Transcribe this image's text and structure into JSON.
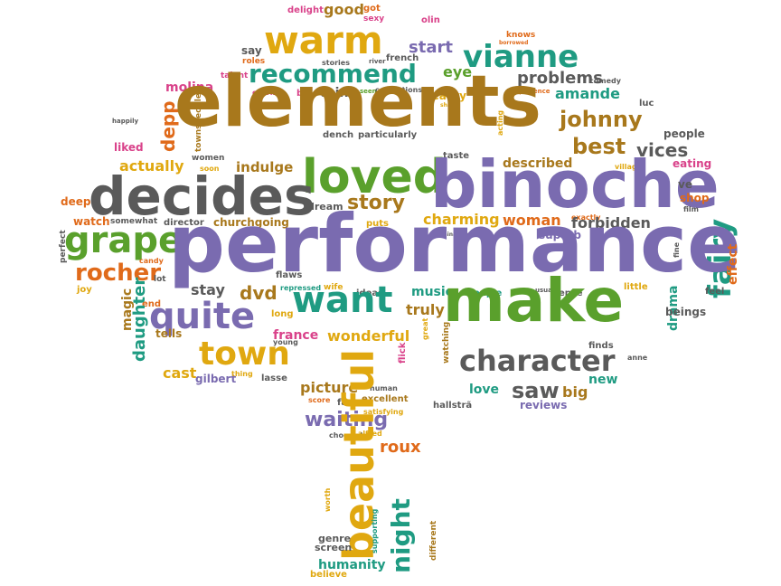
{
  "colors": {
    "brown": "#a8781c",
    "purple": "#7a6bb0",
    "gray": "#5a5a5a",
    "green": "#5aa02c",
    "teal": "#1f9b82",
    "gold": "#e0a810",
    "orange": "#e06a1a",
    "pink": "#d9428a",
    "background": "#ffffff"
  },
  "words": [
    "delight",
    "good",
    "got",
    "sexy",
    "olin",
    "warm",
    "knows",
    "borrowed",
    "say",
    "start",
    "vianne",
    "roles",
    "stories",
    "river",
    "french",
    "comedy",
    "talent",
    "recommend",
    "eye",
    "problems",
    "luc",
    "molina",
    "charm",
    "bit",
    "think",
    "seen",
    "confections",
    "beauty",
    "experience",
    "amande",
    "share",
    "happily",
    "depp",
    "elements",
    "johnny",
    "acting",
    "people",
    "townspeople",
    "dench",
    "particularly",
    "taste",
    "best",
    "liked",
    "women",
    "vices",
    "soon",
    "actually",
    "indulge",
    "described",
    "village",
    "eating",
    "loved",
    "decides",
    "binoche",
    "deep",
    "ve",
    "shop",
    "dream",
    "story",
    "puts",
    "exactly",
    "film",
    "watch",
    "somewhat",
    "director",
    "churchgoing",
    "charming",
    "woman",
    "forbidden",
    "fairy",
    "perfect",
    "grape",
    "nominations",
    "superb",
    "candy",
    "performance",
    "fine",
    "effect",
    "rocher",
    "lot",
    "flaws",
    "joy",
    "repressed",
    "wife",
    "stay",
    "usual",
    "little",
    "feel",
    "magic",
    "dvd",
    "ideas",
    "music",
    "couple",
    "sense",
    "end",
    "want",
    "quite",
    "long",
    "truly",
    "drama",
    "beings",
    "daughter",
    "young",
    "great",
    "make",
    "tells",
    "france",
    "wonderful",
    "finds",
    "anne",
    "town",
    "flick",
    "watching",
    "character",
    "cast",
    "gilbert",
    "thing",
    "lasse",
    "new",
    "picture",
    "human",
    "saw",
    "love",
    "big",
    "score",
    "fast",
    "excellent",
    "hallstrã",
    "reviews",
    "satisfying",
    "waiting",
    "alfred",
    "roux",
    "chocolate",
    "night",
    "beautiful",
    "worth",
    "genre",
    "screen",
    "humanity",
    "supporting",
    "different",
    "believe"
  ]
}
